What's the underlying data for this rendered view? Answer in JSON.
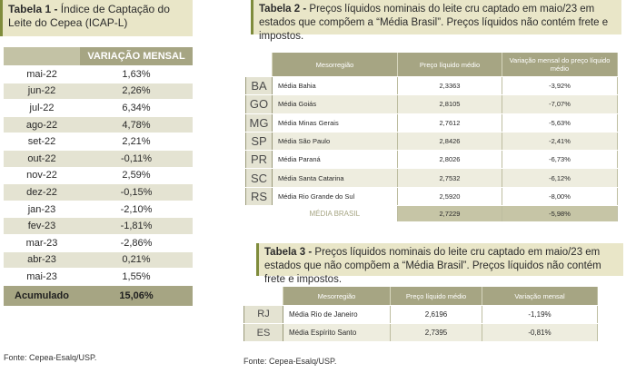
{
  "table1": {
    "title_bold": "Tabela 1 -",
    "title_rest": " Índice de Captação do Leite do Cepea (ICAP-L)",
    "header_month": "",
    "header_var": "VARIAÇÃO MENSAL",
    "rows": [
      {
        "month": "mai-22",
        "value": "1,63%"
      },
      {
        "month": "jun-22",
        "value": "2,26%"
      },
      {
        "month": "jul-22",
        "value": "6,34%"
      },
      {
        "month": "ago-22",
        "value": "4,78%"
      },
      {
        "month": "set-22",
        "value": "2,21%"
      },
      {
        "month": "out-22",
        "value": "-0,11%"
      },
      {
        "month": "nov-22",
        "value": "2,59%"
      },
      {
        "month": "dez-22",
        "value": "-0,15%"
      },
      {
        "month": "jan-23",
        "value": "-2,10%"
      },
      {
        "month": "fev-23",
        "value": "-1,81%"
      },
      {
        "month": "mar-23",
        "value": "-2,86%"
      },
      {
        "month": "abr-23",
        "value": "0,21%"
      },
      {
        "month": "mai-23",
        "value": "1,55%"
      }
    ],
    "total_label": "Acumulado",
    "total_value": "15,06%",
    "source": "Fonte: Cepea-Esalq/USP."
  },
  "table2": {
    "title_bold": "Tabela 2 -",
    "title_rest": " Preços líquidos nominais do leite cru captado em maio/23 em estados que compõem a “Média Brasil”. Preços líquidos não contém frete e impostos.",
    "header": {
      "mesorregiao": "Mesorregião",
      "preco": "Preço líquido médio",
      "variacao": "Variação mensal do preço líquido médio"
    },
    "rows": [
      {
        "uf": "BA",
        "mesorregiao": "Média Bahia",
        "preco": "2,3363",
        "variacao": "-3,92%"
      },
      {
        "uf": "GO",
        "mesorregiao": "Média Goiás",
        "preco": "2,8105",
        "variacao": "-7,07%"
      },
      {
        "uf": "MG",
        "mesorregiao": "Média Minas Gerais",
        "preco": "2,7612",
        "variacao": "-5,63%"
      },
      {
        "uf": "SP",
        "mesorregiao": "Média São Paulo",
        "preco": "2,8426",
        "variacao": "-2,41%"
      },
      {
        "uf": "PR",
        "mesorregiao": "Média Paraná",
        "preco": "2,8026",
        "variacao": "-6,73%"
      },
      {
        "uf": "SC",
        "mesorregiao": "Média Santa Catarina",
        "preco": "2,7532",
        "variacao": "-6,12%"
      },
      {
        "uf": "RS",
        "mesorregiao": "Média Rio Grande do Sul",
        "preco": "2,5920",
        "variacao": "-8,00%"
      }
    ],
    "total": {
      "label": "MÉDIA BRASIL",
      "preco": "2,7229",
      "variacao": "-5,98%"
    }
  },
  "table3": {
    "title_bold": "Tabela 3 -",
    "title_rest": " Preços líquidos nominais do leite cru captado em maio/23 em estados que não compõem a “Média Brasil”. Preços líquidos não contém frete e impostos.",
    "header": {
      "mesorregiao": "Mesorregião",
      "preco": "Preço líquido médio",
      "variacao": "Variação mensal"
    },
    "rows": [
      {
        "uf": "RJ",
        "mesorregiao": "Média Rio de Janeiro",
        "preco": "2,6196",
        "variacao": "-1,19%"
      },
      {
        "uf": "ES",
        "mesorregiao": "Média Espírito Santo",
        "preco": "2,7395",
        "variacao": "-0,81%"
      }
    ],
    "source": "Fonte: Cepea-Esalq/USP."
  },
  "colors": {
    "accent": "#a6a583",
    "light": "#e4e3d2",
    "title_bg": "#e9e6c8",
    "bar": "#7f8c3c"
  }
}
